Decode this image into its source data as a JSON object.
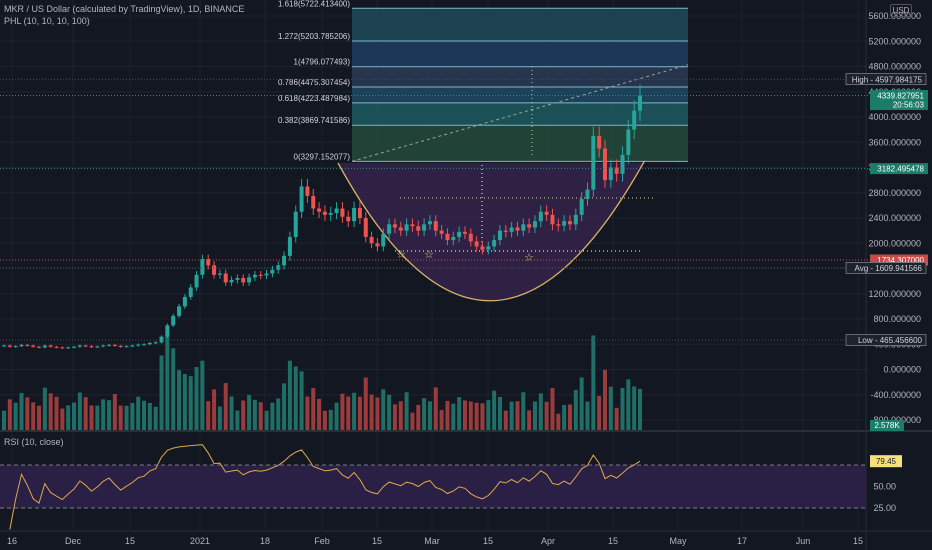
{
  "header": {
    "symbol_line": "MKR / US Dollar (calculated by TradingView), 1D, BINANCE",
    "indicator_line": "PHL (10, 10, 10, 100)",
    "currency_badge": "USD"
  },
  "colors": {
    "background": "#131722",
    "grid": "#1e222d",
    "up_candle": "#26a69a",
    "down_candle": "#ef5350",
    "volume_up": "#1f6f66",
    "volume_down": "#9c3b3c",
    "cup_curve": "#d8b26a",
    "rsi_line": "#e0a84a",
    "rsi_band": "#2a1f44",
    "cup_fill": "#3a2650",
    "fib_fill": "#1e4a63"
  },
  "chart_data": {
    "type": "candlestick",
    "price_axis": {
      "ticks": [
        "5600.000000",
        "5200.000000",
        "4800.000000",
        "4400.000000",
        "4000.000000",
        "3600.000000",
        "3200.000000",
        "2800.000000",
        "2400.000000",
        "2000.000000",
        "1600.000000",
        "1200.000000",
        "800.000000",
        "400.000000",
        "0.000000",
        "-400.000000",
        "-800.000000"
      ],
      "range": [
        -1000,
        5800
      ]
    },
    "time_axis": {
      "labels": [
        "16",
        "Dec",
        "15",
        "2021",
        "18",
        "Feb",
        "15",
        "Mar",
        "15",
        "Apr",
        "15",
        "May",
        "17",
        "Jun",
        "15"
      ]
    },
    "fibonacci": [
      {
        "label": "1.618(5722.413400)",
        "level": 1.618,
        "price": 5722.4134
      },
      {
        "label": "1.272(5203.785206)",
        "level": 1.272,
        "price": 5203.785206
      },
      {
        "label": "1(4796.077493)",
        "level": 1.0,
        "price": 4796.077493
      },
      {
        "label": "0.786(4475.307454)",
        "level": 0.786,
        "price": 4475.307454
      },
      {
        "label": "0.618(4223.487984)",
        "level": 0.618,
        "price": 4223.487984
      },
      {
        "label": "0.382(3869.741586)",
        "level": 0.382,
        "price": 3869.741586
      },
      {
        "label": "0(3297.152077)",
        "level": 0.0,
        "price": 3297.152077
      }
    ],
    "price_markers": [
      {
        "label": "High",
        "value": "4597.984175",
        "price": 4597.984175,
        "kind": "label"
      },
      {
        "label": "",
        "value": "4339.827951",
        "sub": "20:56:03",
        "price": 4339.827951,
        "kind": "last"
      },
      {
        "label": "",
        "value": "3182.495478",
        "price": 3182.495478,
        "kind": "green"
      },
      {
        "label": "",
        "value": "1734.307000",
        "price": 1734.307,
        "kind": "red"
      },
      {
        "label": "Avg",
        "value": "1609.941566",
        "price": 1609.941566,
        "kind": "label"
      },
      {
        "label": "Low",
        "value": "465.456600",
        "price": 465.4566,
        "kind": "label"
      }
    ],
    "volume": {
      "last_label": "2.578K"
    },
    "rsi": {
      "title": "RSI (10, close)",
      "ticks": [
        "50.00",
        "25.00"
      ],
      "last_value": "79.45",
      "upper": 75,
      "lower": 25,
      "range": [
        0,
        100
      ]
    },
    "close_series": [
      380,
      360,
      370,
      390,
      380,
      360,
      350,
      380,
      360,
      350,
      340,
      350,
      360,
      380,
      370,
      355,
      365,
      380,
      390,
      375,
      360,
      370,
      380,
      395,
      400,
      420,
      430,
      520,
      700,
      850,
      1000,
      1150,
      1300,
      1500,
      1750,
      1650,
      1500,
      1520,
      1380,
      1420,
      1450,
      1380,
      1460,
      1500,
      1490,
      1520,
      1580,
      1650,
      1800,
      2100,
      2500,
      2900,
      2750,
      2550,
      2500,
      2450,
      2480,
      2550,
      2420,
      2350,
      2560,
      2400,
      2100,
      2000,
      1950,
      2150,
      2300,
      2250,
      2200,
      2300,
      2270,
      2200,
      2300,
      2350,
      2200,
      2150,
      2050,
      2100,
      2180,
      2150,
      2030,
      1950,
      1900,
      1950,
      2050,
      2200,
      2180,
      2250,
      2200,
      2300,
      2250,
      2350,
      2500,
      2450,
      2300,
      2280,
      2350,
      2300,
      2450,
      2700,
      2850,
      3700,
      3500,
      3000,
      3200,
      3100,
      3400,
      3800,
      4100,
      4339
    ]
  }
}
